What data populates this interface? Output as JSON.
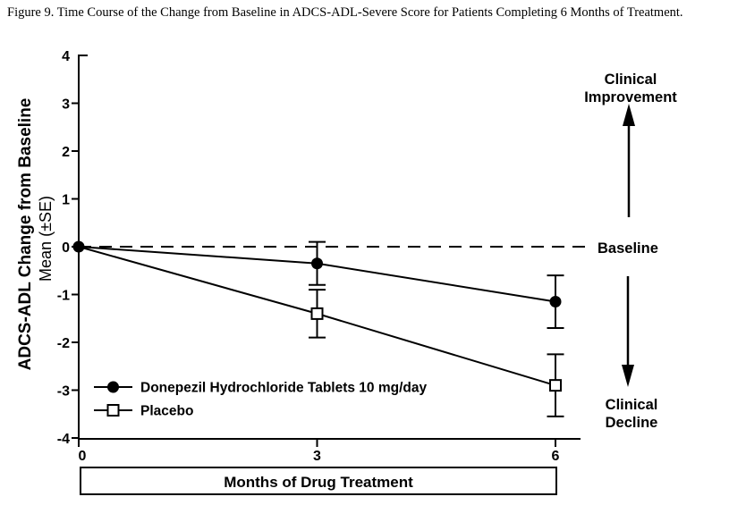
{
  "figure_title": "Figure 9. Time Course of the Change from Baseline in ADCS-ADL-Severe Score for Patients Completing 6 Months of Treatment.",
  "colors": {
    "foreground": "#000000",
    "background": "#ffffff"
  },
  "chart_data": {
    "type": "line",
    "title": "Figure 9. Time Course of the Change from Baseline in ADCS-ADL-Severe Score for Patients Completing 6 Months of Treatment.",
    "x": [
      0,
      3,
      6
    ],
    "x_tick_labels": [
      "0",
      "3",
      "6"
    ],
    "xlabel": "Months of Drug Treatment",
    "ylabel_line1": "ADCS-ADL Change from Baseline",
    "ylabel_line2": "Mean (±SE)",
    "ylim": [
      -4,
      4
    ],
    "y_ticks": [
      4,
      3,
      2,
      1,
      0,
      -1,
      -2,
      -3,
      -4
    ],
    "grid": false,
    "legend_position": "lower-left-inside",
    "baseline_value": 0,
    "series": [
      {
        "name": "Donepezil Hydrochloride Tablets 10 mg/day",
        "marker": "filled-circle",
        "values": [
          0,
          -0.35,
          -1.15
        ],
        "se": [
          0,
          0.45,
          0.55
        ]
      },
      {
        "name": "Placebo",
        "marker": "open-square",
        "values": [
          0,
          -1.4,
          -2.9
        ],
        "se": [
          0,
          0.5,
          0.65
        ]
      }
    ],
    "annotations": {
      "improvement": "Clinical Improvement",
      "baseline": "Baseline",
      "decline": "Clinical Decline"
    }
  }
}
